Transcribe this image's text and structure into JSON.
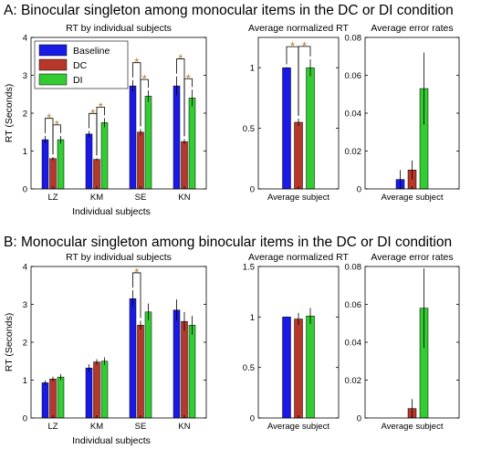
{
  "colors": {
    "Baseline": "#1a1ae6",
    "DC": "#b8372b",
    "DI": "#33cc33",
    "significance": "#b87a2a"
  },
  "sections": [
    {
      "title": "A: Binocular singleton among monocular items in the DC or DI condition",
      "xlabel": "Individual subjects",
      "legend": [
        "Baseline",
        "DC",
        "DI"
      ]
    },
    {
      "title": "B: Monocular singleton among binocular items in the DC or DI condition",
      "xlabel": "Individual subjects",
      "legend": []
    }
  ],
  "chart_data": [
    {
      "type": "bar",
      "section": 0,
      "title": "RT by individual subjects",
      "ylabel": "RT (Seconds)",
      "categories": [
        "LZ",
        "KM",
        "SE",
        "KN"
      ],
      "ylim": [
        0,
        4
      ],
      "yticks": [
        "0",
        "1",
        "2",
        "3",
        "4"
      ],
      "ytick_values": [
        0,
        1,
        2,
        3,
        4
      ],
      "series": [
        {
          "name": "Baseline",
          "values": [
            1.3,
            1.45,
            2.72,
            2.72
          ],
          "errors": [
            0.1,
            0.08,
            0.15,
            0.25
          ]
        },
        {
          "name": "DC",
          "values": [
            0.8,
            0.78,
            1.5,
            1.25
          ],
          "errors": [
            0.04,
            0.03,
            0.08,
            0.07
          ]
        },
        {
          "name": "DI",
          "values": [
            1.3,
            1.75,
            2.45,
            2.4
          ],
          "errors": [
            0.1,
            0.12,
            0.15,
            0.22
          ]
        }
      ],
      "significance": [
        {
          "category": 0,
          "from": "Baseline",
          "to": "DC",
          "label": "*"
        },
        {
          "category": 0,
          "from": "DC",
          "to": "DI",
          "label": "*"
        },
        {
          "category": 1,
          "from": "Baseline",
          "to": "DC",
          "label": "*"
        },
        {
          "category": 1,
          "from": "DC",
          "to": "DI",
          "label": "*"
        },
        {
          "category": 2,
          "from": "Baseline",
          "to": "DC",
          "label": "*"
        },
        {
          "category": 2,
          "from": "DC",
          "to": "DI",
          "label": "*"
        },
        {
          "category": 3,
          "from": "Baseline",
          "to": "DC",
          "label": "*"
        },
        {
          "category": 3,
          "from": "DC",
          "to": "DI",
          "label": "*"
        }
      ]
    },
    {
      "type": "bar",
      "section": 0,
      "title": "Average normalized RT",
      "ylabel": "",
      "categories": [
        "Average subject"
      ],
      "ylim": [
        0,
        1.25
      ],
      "yticks": [
        "0",
        "0.5",
        "1"
      ],
      "ytick_values": [
        0,
        0.5,
        1
      ],
      "series": [
        {
          "name": "Baseline",
          "values": [
            1.0
          ],
          "errors": [
            0.005
          ]
        },
        {
          "name": "DC",
          "values": [
            0.55
          ],
          "errors": [
            0.03
          ]
        },
        {
          "name": "DI",
          "values": [
            1.0
          ],
          "errors": [
            0.07
          ]
        }
      ],
      "significance": [
        {
          "category": 0,
          "from": "Baseline",
          "to": "DC",
          "label": "*"
        },
        {
          "category": 0,
          "from": "DC",
          "to": "DI",
          "label": "*"
        }
      ]
    },
    {
      "type": "bar",
      "section": 0,
      "title": "Average error rates",
      "ylabel": "",
      "categories": [
        "Average subject"
      ],
      "ylim": [
        0,
        0.08
      ],
      "yticks": [
        "0",
        "0.02",
        "0.04",
        "0.06",
        "0.08"
      ],
      "ytick_values": [
        0,
        0.02,
        0.04,
        0.06,
        0.08
      ],
      "series": [
        {
          "name": "Baseline",
          "values": [
            0.005
          ],
          "errors": [
            0.005
          ]
        },
        {
          "name": "DC",
          "values": [
            0.01
          ],
          "errors": [
            0.005
          ]
        },
        {
          "name": "DI",
          "values": [
            0.053
          ],
          "errors": [
            0.019
          ]
        }
      ],
      "significance": []
    },
    {
      "type": "bar",
      "section": 1,
      "title": "RT by individual subjects",
      "ylabel": "RT (Seconds)",
      "categories": [
        "LZ",
        "KM",
        "SE",
        "KN"
      ],
      "ylim": [
        0,
        4
      ],
      "yticks": [
        "0",
        "1",
        "2",
        "3",
        "4"
      ],
      "ytick_values": [
        0,
        1,
        2,
        3,
        4
      ],
      "series": [
        {
          "name": "Baseline",
          "values": [
            0.93,
            1.32,
            3.15,
            2.85
          ],
          "errors": [
            0.06,
            0.1,
            0.22,
            0.28
          ]
        },
        {
          "name": "DC",
          "values": [
            1.03,
            1.48,
            2.45,
            2.55
          ],
          "errors": [
            0.06,
            0.07,
            0.12,
            0.25
          ]
        },
        {
          "name": "DI",
          "values": [
            1.08,
            1.5,
            2.8,
            2.45
          ],
          "errors": [
            0.08,
            0.1,
            0.22,
            0.25
          ]
        }
      ],
      "significance": [
        {
          "category": 2,
          "from": "Baseline",
          "to": "DC",
          "label": "*"
        }
      ]
    },
    {
      "type": "bar",
      "section": 1,
      "title": "Average normalized RT",
      "ylabel": "",
      "categories": [
        "Average subject"
      ],
      "ylim": [
        0,
        1.5
      ],
      "yticks": [
        "0",
        "0.5",
        "1",
        "1.5"
      ],
      "ytick_values": [
        0,
        0.5,
        1,
        1.5
      ],
      "series": [
        {
          "name": "Baseline",
          "values": [
            1.0
          ],
          "errors": [
            0.005
          ]
        },
        {
          "name": "DC",
          "values": [
            0.98
          ],
          "errors": [
            0.06
          ]
        },
        {
          "name": "DI",
          "values": [
            1.01
          ],
          "errors": [
            0.08
          ]
        }
      ],
      "significance": []
    },
    {
      "type": "bar",
      "section": 1,
      "title": "Average error rates",
      "ylabel": "",
      "categories": [
        "Average subject"
      ],
      "ylim": [
        0,
        0.08
      ],
      "yticks": [
        "0",
        "0.02",
        "0.04",
        "0.06",
        "0.08"
      ],
      "ytick_values": [
        0,
        0.02,
        0.04,
        0.06,
        0.08
      ],
      "series": [
        {
          "name": "Baseline",
          "values": [
            0.0
          ],
          "errors": [
            0.0
          ]
        },
        {
          "name": "DC",
          "values": [
            0.005
          ],
          "errors": [
            0.005
          ]
        },
        {
          "name": "DI",
          "values": [
            0.058
          ],
          "errors": [
            0.021
          ]
        }
      ],
      "significance": []
    }
  ]
}
